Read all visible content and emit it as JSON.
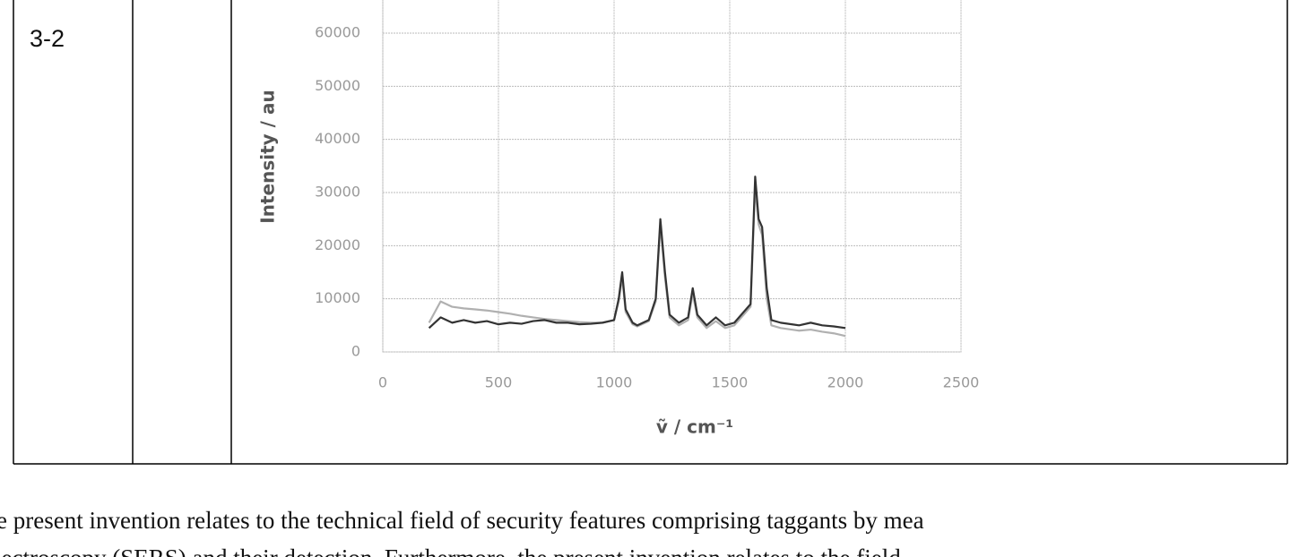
{
  "table": {
    "cell": "3-2"
  },
  "chart_data": {
    "type": "line",
    "y_label": "Intensity / au",
    "x_label": "ṽ / cm⁻¹",
    "x": [
      200,
      250,
      300,
      350,
      400,
      450,
      500,
      550,
      600,
      650,
      700,
      750,
      800,
      850,
      900,
      950,
      1000,
      1020,
      1035,
      1050,
      1080,
      1100,
      1150,
      1180,
      1200,
      1220,
      1240,
      1280,
      1320,
      1340,
      1360,
      1400,
      1440,
      1480,
      1520,
      1560,
      1590,
      1610,
      1625,
      1640,
      1660,
      1680,
      1720,
      1800,
      1850,
      1900,
      1950,
      2000
    ],
    "series": [
      {
        "color": "#b0b0b0",
        "values": [
          5500,
          9500,
          8500,
          8200,
          8000,
          7800,
          7500,
          7200,
          6800,
          6500,
          6200,
          6000,
          5800,
          5600,
          5500,
          5500,
          6000,
          9500,
          14000,
          7500,
          5200,
          4800,
          5800,
          9500,
          24000,
          14000,
          6500,
          5000,
          6000,
          11000,
          6500,
          4500,
          5800,
          4500,
          5000,
          7000,
          8500,
          31000,
          24000,
          22000,
          10000,
          5000,
          4500,
          4000,
          4200,
          3800,
          3500,
          3000
        ]
      },
      {
        "color": "#333333",
        "values": [
          4500,
          6500,
          5500,
          6000,
          5500,
          5800,
          5200,
          5500,
          5300,
          5800,
          6000,
          5500,
          5500,
          5200,
          5300,
          5500,
          6000,
          10000,
          15000,
          8000,
          5500,
          5000,
          6000,
          10000,
          25000,
          15000,
          7000,
          5500,
          6500,
          12000,
          7000,
          5000,
          6500,
          5000,
          5500,
          7500,
          9000,
          33000,
          25000,
          23500,
          12000,
          6000,
          5500,
          5000,
          5500,
          5000,
          4800,
          4500
        ]
      }
    ],
    "xlim": [
      0,
      2500
    ],
    "xticks": [
      0,
      500,
      1000,
      1500,
      2000,
      2500
    ],
    "ylim": [
      0,
      70000
    ],
    "yticks": [
      0,
      10000,
      20000,
      30000,
      40000,
      50000,
      60000
    ],
    "grid": true
  },
  "paragraph": {
    "lines": [
      "e present invention relates to the technical field of security features comprising taggants by mea",
      "pectroscopy (SERS) and their detection. Furthermore, the present invention relates to the field"
    ]
  }
}
